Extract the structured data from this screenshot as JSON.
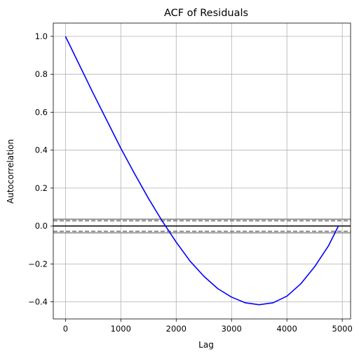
{
  "chart_data": {
    "type": "line",
    "title": "ACF of Residuals",
    "xlabel": "Lag",
    "ylabel": "Autocorrelation",
    "xlim": [
      -220,
      5150
    ],
    "ylim": [
      -0.49,
      1.07
    ],
    "xticks": [
      0,
      1000,
      2000,
      3000,
      4000,
      5000
    ],
    "xtick_labels": [
      "0",
      "1000",
      "2000",
      "3000",
      "4000",
      "5000"
    ],
    "yticks": [
      -0.4,
      -0.2,
      0.0,
      0.2,
      0.4,
      0.6,
      0.8,
      1.0
    ],
    "ytick_labels": [
      "−0.4",
      "−0.2",
      "0.0",
      "0.2",
      "0.4",
      "0.6",
      "0.8",
      "1.0"
    ],
    "grid": true,
    "series": [
      {
        "color": "#0000ff",
        "x": [
          0,
          250,
          500,
          750,
          1000,
          1250,
          1500,
          1750,
          2000,
          2250,
          2500,
          2750,
          3000,
          3250,
          3500,
          3750,
          4000,
          4250,
          4500,
          4750,
          4930
        ],
        "y": [
          1.0,
          0.85,
          0.7,
          0.555,
          0.41,
          0.275,
          0.145,
          0.025,
          -0.085,
          -0.185,
          -0.265,
          -0.33,
          -0.375,
          -0.405,
          -0.415,
          -0.405,
          -0.37,
          -0.305,
          -0.215,
          -0.105,
          0.0
        ]
      }
    ],
    "reference_lines": [
      {
        "y": 0.0,
        "style": "solid",
        "color": "#000000"
      },
      {
        "y": 0.036,
        "style": "solid",
        "color": "#808080"
      },
      {
        "y": -0.036,
        "style": "solid",
        "color": "#808080"
      },
      {
        "y": 0.028,
        "style": "dashed",
        "color": "#808080"
      },
      {
        "y": -0.028,
        "style": "dashed",
        "color": "#808080"
      }
    ]
  }
}
